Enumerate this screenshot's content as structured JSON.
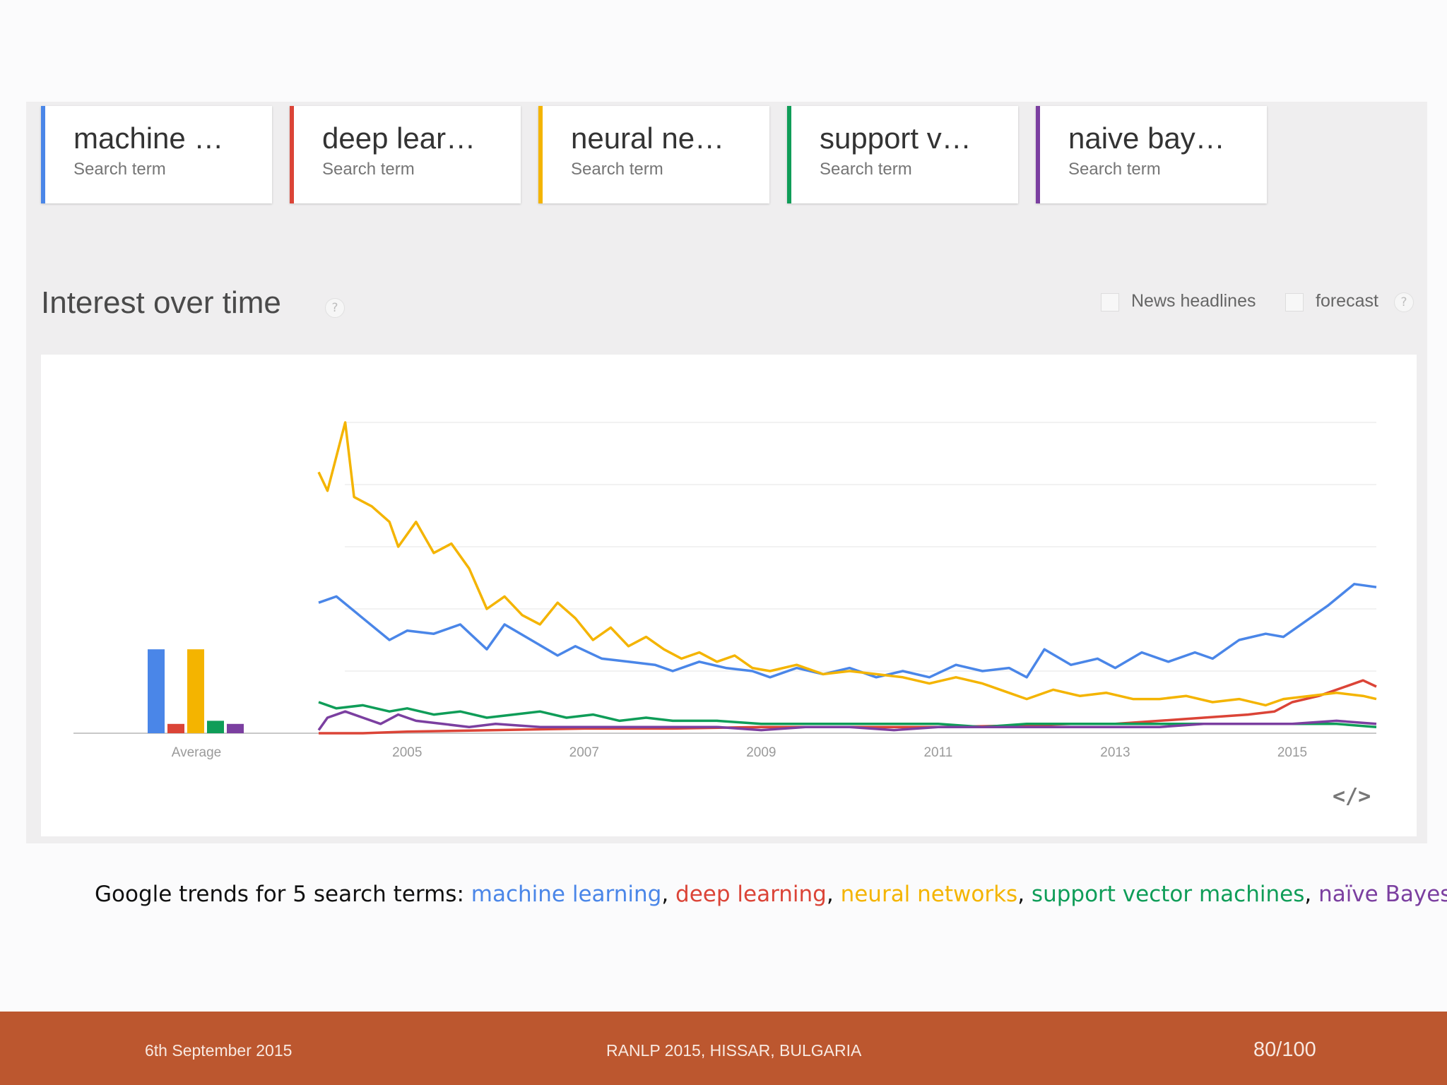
{
  "search_terms": [
    {
      "title": "machine …",
      "subtitle": "Search term",
      "color": "#4a86e8"
    },
    {
      "title": "deep lear…",
      "subtitle": "Search term",
      "color": "#db4437"
    },
    {
      "title": "neural ne…",
      "subtitle": "Search term",
      "color": "#f4b400"
    },
    {
      "title": "support v…",
      "subtitle": "Search term",
      "color": "#0f9d58"
    },
    {
      "title": "naive bay…",
      "subtitle": "Search term",
      "color": "#7b3fa0"
    }
  ],
  "section_title": "Interest over time",
  "help_glyph": "?",
  "options": {
    "news_label": "News headlines",
    "forecast_label": "forecast"
  },
  "embed_glyph": "</>",
  "chart_data": {
    "type": "line",
    "x_ticks": [
      "2005",
      "2007",
      "2009",
      "2011",
      "2013",
      "2015"
    ],
    "average_label": "Average",
    "averages": [
      {
        "name": "machine learning",
        "value": 27
      },
      {
        "name": "deep learning",
        "value": 3
      },
      {
        "name": "neural networks",
        "value": 27
      },
      {
        "name": "support vector machines",
        "value": 4
      },
      {
        "name": "naive Bayes",
        "value": 3
      }
    ],
    "ylim": [
      0,
      100
    ],
    "grid": true,
    "series": [
      {
        "name": "machine learning",
        "color": "#4a86e8",
        "points": [
          [
            2004.0,
            42
          ],
          [
            2004.2,
            44
          ],
          [
            2004.5,
            37
          ],
          [
            2004.8,
            30
          ],
          [
            2005.0,
            33
          ],
          [
            2005.3,
            32
          ],
          [
            2005.6,
            35
          ],
          [
            2005.9,
            27
          ],
          [
            2006.1,
            35
          ],
          [
            2006.4,
            30
          ],
          [
            2006.7,
            25
          ],
          [
            2006.9,
            28
          ],
          [
            2007.2,
            24
          ],
          [
            2007.5,
            23
          ],
          [
            2007.8,
            22
          ],
          [
            2008.0,
            20
          ],
          [
            2008.3,
            23
          ],
          [
            2008.6,
            21
          ],
          [
            2008.9,
            20
          ],
          [
            2009.1,
            18
          ],
          [
            2009.4,
            21
          ],
          [
            2009.7,
            19
          ],
          [
            2010.0,
            21
          ],
          [
            2010.3,
            18
          ],
          [
            2010.6,
            20
          ],
          [
            2010.9,
            18
          ],
          [
            2011.2,
            22
          ],
          [
            2011.5,
            20
          ],
          [
            2011.8,
            21
          ],
          [
            2012.0,
            18
          ],
          [
            2012.2,
            27
          ],
          [
            2012.5,
            22
          ],
          [
            2012.8,
            24
          ],
          [
            2013.0,
            21
          ],
          [
            2013.3,
            26
          ],
          [
            2013.6,
            23
          ],
          [
            2013.9,
            26
          ],
          [
            2014.1,
            24
          ],
          [
            2014.4,
            30
          ],
          [
            2014.7,
            32
          ],
          [
            2014.9,
            31
          ],
          [
            2015.2,
            37
          ],
          [
            2015.4,
            41
          ],
          [
            2015.7,
            48
          ],
          [
            2015.95,
            47
          ]
        ]
      },
      {
        "name": "deep learning",
        "color": "#db4437",
        "points": [
          [
            2004.0,
            0
          ],
          [
            2004.5,
            0
          ],
          [
            2005.0,
            0.5
          ],
          [
            2006.0,
            1
          ],
          [
            2007.0,
            1.5
          ],
          [
            2008.0,
            1.5
          ],
          [
            2009.0,
            2
          ],
          [
            2010.0,
            2
          ],
          [
            2011.0,
            2
          ],
          [
            2012.0,
            2.5
          ],
          [
            2012.5,
            3
          ],
          [
            2013.0,
            3
          ],
          [
            2013.5,
            4
          ],
          [
            2014.0,
            5
          ],
          [
            2014.5,
            6
          ],
          [
            2014.8,
            7
          ],
          [
            2015.0,
            10
          ],
          [
            2015.3,
            12
          ],
          [
            2015.6,
            15
          ],
          [
            2015.8,
            17
          ],
          [
            2015.95,
            15
          ]
        ]
      },
      {
        "name": "neural networks",
        "color": "#f4b400",
        "points": [
          [
            2004.0,
            84
          ],
          [
            2004.1,
            78
          ],
          [
            2004.3,
            100
          ],
          [
            2004.4,
            76
          ],
          [
            2004.6,
            73
          ],
          [
            2004.8,
            68
          ],
          [
            2004.9,
            60
          ],
          [
            2005.1,
            68
          ],
          [
            2005.3,
            58
          ],
          [
            2005.5,
            61
          ],
          [
            2005.7,
            53
          ],
          [
            2005.9,
            40
          ],
          [
            2006.1,
            44
          ],
          [
            2006.3,
            38
          ],
          [
            2006.5,
            35
          ],
          [
            2006.7,
            42
          ],
          [
            2006.9,
            37
          ],
          [
            2007.1,
            30
          ],
          [
            2007.3,
            34
          ],
          [
            2007.5,
            28
          ],
          [
            2007.7,
            31
          ],
          [
            2007.9,
            27
          ],
          [
            2008.1,
            24
          ],
          [
            2008.3,
            26
          ],
          [
            2008.5,
            23
          ],
          [
            2008.7,
            25
          ],
          [
            2008.9,
            21
          ],
          [
            2009.1,
            20
          ],
          [
            2009.4,
            22
          ],
          [
            2009.7,
            19
          ],
          [
            2010.0,
            20
          ],
          [
            2010.3,
            19
          ],
          [
            2010.6,
            18
          ],
          [
            2010.9,
            16
          ],
          [
            2011.2,
            18
          ],
          [
            2011.5,
            16
          ],
          [
            2011.8,
            13
          ],
          [
            2012.0,
            11
          ],
          [
            2012.3,
            14
          ],
          [
            2012.6,
            12
          ],
          [
            2012.9,
            13
          ],
          [
            2013.2,
            11
          ],
          [
            2013.5,
            11
          ],
          [
            2013.8,
            12
          ],
          [
            2014.1,
            10
          ],
          [
            2014.4,
            11
          ],
          [
            2014.7,
            9
          ],
          [
            2014.9,
            11
          ],
          [
            2015.2,
            12
          ],
          [
            2015.5,
            13
          ],
          [
            2015.8,
            12
          ],
          [
            2015.95,
            11
          ]
        ]
      },
      {
        "name": "support vector machines",
        "color": "#0f9d58",
        "points": [
          [
            2004.0,
            10
          ],
          [
            2004.2,
            8
          ],
          [
            2004.5,
            9
          ],
          [
            2004.8,
            7
          ],
          [
            2005.0,
            8
          ],
          [
            2005.3,
            6
          ],
          [
            2005.6,
            7
          ],
          [
            2005.9,
            5
          ],
          [
            2006.2,
            6
          ],
          [
            2006.5,
            7
          ],
          [
            2006.8,
            5
          ],
          [
            2007.1,
            6
          ],
          [
            2007.4,
            4
          ],
          [
            2007.7,
            5
          ],
          [
            2008.0,
            4
          ],
          [
            2008.5,
            4
          ],
          [
            2009.0,
            3
          ],
          [
            2009.5,
            3
          ],
          [
            2010.0,
            3
          ],
          [
            2010.5,
            3
          ],
          [
            2011.0,
            3
          ],
          [
            2011.5,
            2
          ],
          [
            2012.0,
            3
          ],
          [
            2012.5,
            3
          ],
          [
            2013.0,
            3
          ],
          [
            2013.5,
            3
          ],
          [
            2014.0,
            3
          ],
          [
            2014.5,
            3
          ],
          [
            2015.0,
            3
          ],
          [
            2015.5,
            3
          ],
          [
            2015.95,
            2
          ]
        ]
      },
      {
        "name": "naive Bayes",
        "color": "#7b3fa0",
        "points": [
          [
            2004.0,
            1
          ],
          [
            2004.1,
            5
          ],
          [
            2004.3,
            7
          ],
          [
            2004.5,
            5
          ],
          [
            2004.7,
            3
          ],
          [
            2004.9,
            6
          ],
          [
            2005.1,
            4
          ],
          [
            2005.4,
            3
          ],
          [
            2005.7,
            2
          ],
          [
            2006.0,
            3
          ],
          [
            2006.5,
            2
          ],
          [
            2007.0,
            2
          ],
          [
            2007.5,
            2
          ],
          [
            2008.0,
            2
          ],
          [
            2008.5,
            2
          ],
          [
            2009.0,
            1
          ],
          [
            2009.5,
            2
          ],
          [
            2010.0,
            2
          ],
          [
            2010.5,
            1
          ],
          [
            2011.0,
            2
          ],
          [
            2011.5,
            2
          ],
          [
            2012.0,
            2
          ],
          [
            2012.5,
            2
          ],
          [
            2013.0,
            2
          ],
          [
            2013.5,
            2
          ],
          [
            2014.0,
            3
          ],
          [
            2014.5,
            3
          ],
          [
            2015.0,
            3
          ],
          [
            2015.5,
            4
          ],
          [
            2015.95,
            3
          ]
        ]
      }
    ]
  },
  "caption": {
    "prefix": "Google trends for 5 search terms: ",
    "terms": [
      {
        "text": "machine learning",
        "color": "#4a86e8"
      },
      {
        "text": "deep learning",
        "color": "#db4437"
      },
      {
        "text": "neural networks",
        "color": "#f4b400"
      },
      {
        "text": "support vector machines",
        "color": "#0f9d58"
      },
      {
        "text": "naïve Bayes",
        "color": "#7b3fa0"
      }
    ],
    "separator": ", "
  },
  "footer": {
    "date": "6th September 2015",
    "conference": "RANLP 2015, HISSAR, BULGARIA",
    "page": "80/100"
  }
}
